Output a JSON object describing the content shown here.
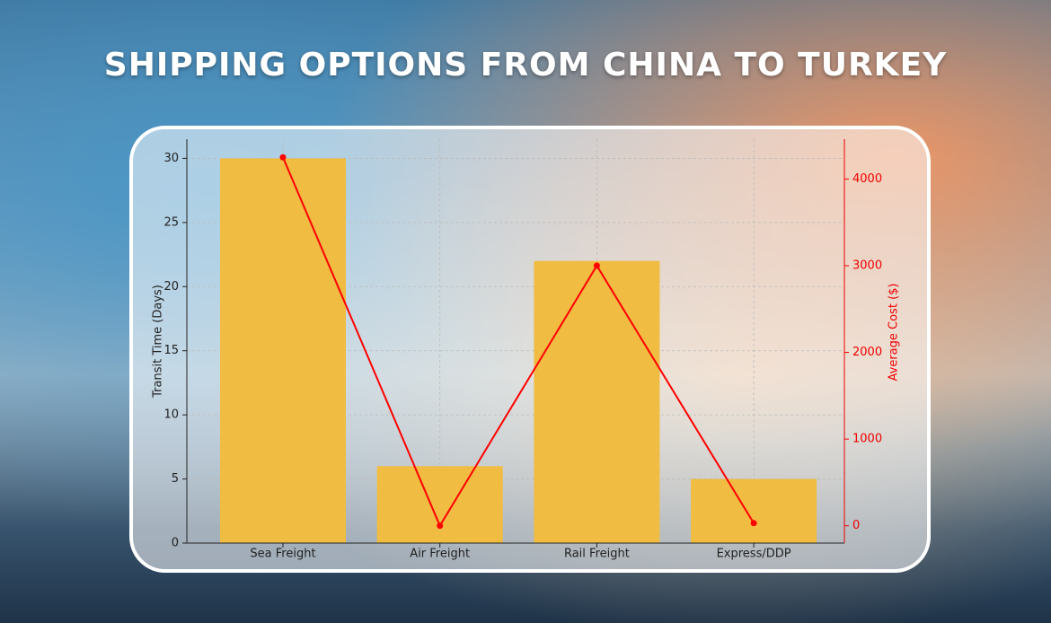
{
  "chart_data": {
    "type": "bar",
    "title": "SHIPPING OPTIONS FROM CHINA TO TURKEY",
    "categories": [
      "Sea Freight",
      "Air Freight",
      "Rail Freight",
      "Express/DDP"
    ],
    "series": [
      {
        "name": "Transit Time (Days)",
        "type": "bar",
        "color": "#f0bc42",
        "values": [
          30,
          6,
          22,
          5
        ]
      },
      {
        "name": "Average Cost ($)",
        "type": "line",
        "axis": "y2",
        "color": "#ff0000",
        "values": [
          4250,
          0,
          3000,
          30
        ]
      }
    ],
    "y_label": "Transit Time (Days)",
    "y2_label": "Average Cost ($)",
    "ylim": [
      0,
      31.5
    ],
    "yticks": [
      0,
      5,
      10,
      15,
      20,
      25,
      30
    ],
    "y2lim": [
      -200,
      4460
    ],
    "y2ticks": [
      0,
      1000,
      2000,
      3000,
      4000
    ],
    "grid": true
  }
}
